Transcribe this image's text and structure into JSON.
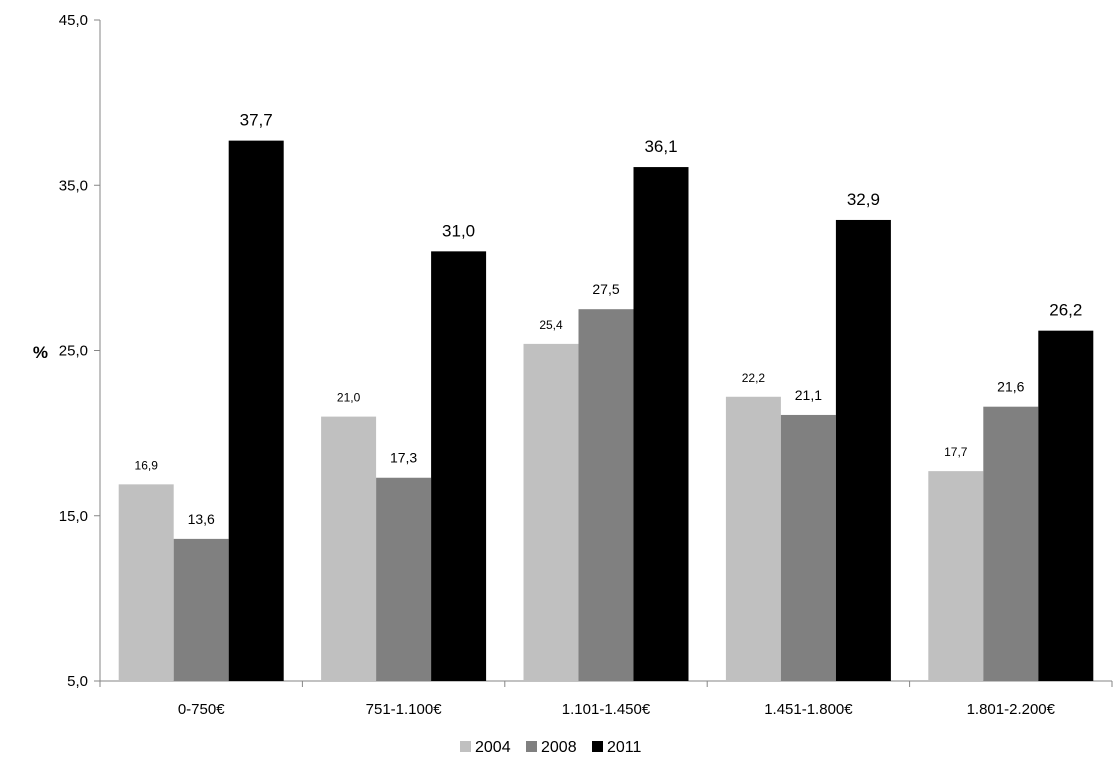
{
  "chart_data": {
    "type": "bar",
    "ylabel": "%",
    "xlabel": "",
    "ylim": [
      5,
      45
    ],
    "yticks": [
      "5,0",
      "15,0",
      "25,0",
      "35,0",
      "45,0"
    ],
    "ytick_values": [
      5,
      15,
      25,
      35,
      45
    ],
    "categories": [
      "0-750€",
      "751-1.100€",
      "1.101-1.450€",
      "1.451-1.800€",
      "1.801-2.200€"
    ],
    "series": [
      {
        "name": "2004",
        "color": "#c0c0c0",
        "values": [
          16.9,
          21.0,
          25.4,
          22.2,
          17.7
        ],
        "labels": [
          "16,9",
          "21,0",
          "25,4",
          "22,2",
          "17,7"
        ]
      },
      {
        "name": "2008",
        "color": "#808080",
        "values": [
          13.6,
          17.3,
          27.5,
          21.1,
          21.6
        ],
        "labels": [
          "13,6",
          "17,3",
          "27,5",
          "21,1",
          "21,6"
        ]
      },
      {
        "name": "2011",
        "color": "#000000",
        "values": [
          37.7,
          31.0,
          36.1,
          32.9,
          26.2
        ],
        "labels": [
          "37,7",
          "31,0",
          "36,1",
          "32,9",
          "26,2"
        ]
      }
    ],
    "legend_position": "bottom",
    "grid": false
  }
}
